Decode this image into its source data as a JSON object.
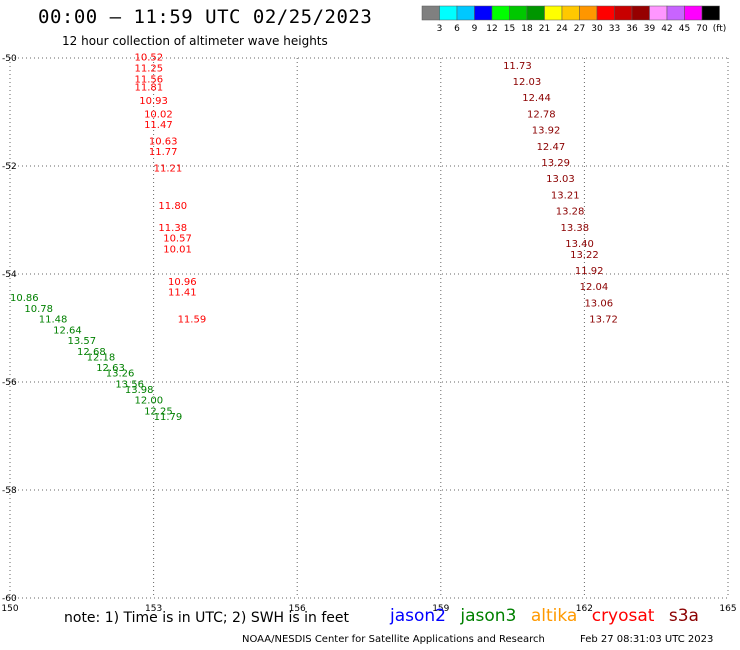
{
  "header": {
    "title": "00:00 — 11:59 UTC 02/25/2023",
    "subtitle": "12 hour collection of altimeter wave heights"
  },
  "colorbar": {
    "colors": [
      "#808080",
      "#00ffff",
      "#00c8ff",
      "#0000ff",
      "#00ff00",
      "#00c800",
      "#009600",
      "#ffff00",
      "#ffc800",
      "#ff9600",
      "#ff0000",
      "#c80000",
      "#960000",
      "#ff96ff",
      "#c864ff",
      "#ff00ff",
      "#000000"
    ],
    "labels": [
      "3",
      "6",
      "9",
      "12",
      "15",
      "18",
      "21",
      "24",
      "27",
      "30",
      "33",
      "36",
      "39",
      "42",
      "45",
      "70",
      "(ft)"
    ]
  },
  "footer": {
    "note": "note: 1) Time is in UTC; 2) SWH is in feet",
    "satellites": [
      {
        "name": "jason2",
        "color": "#0000ff"
      },
      {
        "name": "jason3",
        "color": "#008000"
      },
      {
        "name": "altika",
        "color": "#ff9900"
      },
      {
        "name": "cryosat",
        "color": "#ff0000"
      },
      {
        "name": "s3a",
        "color": "#8b0000"
      }
    ],
    "credit": "NOAA/NESDIS Center for Satellite Applications and Research",
    "date": "Feb 27 08:31:03 UTC 2023"
  },
  "chart_data": {
    "type": "scatter",
    "title": "12 hour collection of altimeter wave heights",
    "xlim": [
      150,
      165
    ],
    "ylim": [
      -60,
      -50
    ],
    "x_ticks": [
      "150",
      "153",
      "156",
      "159",
      "162",
      "165"
    ],
    "y_ticks": [
      "-50",
      "-52",
      "-54",
      "-56",
      "-58",
      "-60"
    ],
    "grid": true,
    "series": [
      {
        "name": "cryosat",
        "color": "#ff0000",
        "points": [
          {
            "x": 152.9,
            "y": -50.05,
            "v": "10.52"
          },
          {
            "x": 152.9,
            "y": -50.25,
            "v": "11.25"
          },
          {
            "x": 152.9,
            "y": -50.45,
            "v": "11.56"
          },
          {
            "x": 152.9,
            "y": -50.6,
            "v": "11.81"
          },
          {
            "x": 153.0,
            "y": -50.85,
            "v": "10.93"
          },
          {
            "x": 153.1,
            "y": -51.1,
            "v": "10.02"
          },
          {
            "x": 153.1,
            "y": -51.3,
            "v": "11.47"
          },
          {
            "x": 153.2,
            "y": -51.6,
            "v": "10.63"
          },
          {
            "x": 153.2,
            "y": -51.8,
            "v": "11.77"
          },
          {
            "x": 153.3,
            "y": -52.1,
            "v": "11.21"
          },
          {
            "x": 153.4,
            "y": -52.8,
            "v": "11.80"
          },
          {
            "x": 153.4,
            "y": -53.2,
            "v": "11.38"
          },
          {
            "x": 153.5,
            "y": -53.4,
            "v": "10.57"
          },
          {
            "x": 153.5,
            "y": -53.6,
            "v": "10.01"
          },
          {
            "x": 153.6,
            "y": -54.2,
            "v": "10.96"
          },
          {
            "x": 153.6,
            "y": -54.4,
            "v": "11.41"
          },
          {
            "x": 153.8,
            "y": -54.9,
            "v": "11.59"
          }
        ]
      },
      {
        "name": "jason3",
        "color": "#008000",
        "points": [
          {
            "x": 150.3,
            "y": -54.5,
            "v": "10.86"
          },
          {
            "x": 150.6,
            "y": -54.7,
            "v": "10.78"
          },
          {
            "x": 150.9,
            "y": -54.9,
            "v": "11.48"
          },
          {
            "x": 151.2,
            "y": -55.1,
            "v": "12.64"
          },
          {
            "x": 151.5,
            "y": -55.3,
            "v": "13.57"
          },
          {
            "x": 151.7,
            "y": -55.5,
            "v": "12.68"
          },
          {
            "x": 151.9,
            "y": -55.6,
            "v": "12.18"
          },
          {
            "x": 152.1,
            "y": -55.8,
            "v": "12.63"
          },
          {
            "x": 152.3,
            "y": -55.9,
            "v": "13.26"
          },
          {
            "x": 152.5,
            "y": -56.1,
            "v": "13.56"
          },
          {
            "x": 152.7,
            "y": -56.2,
            "v": "13.98"
          },
          {
            "x": 152.9,
            "y": -56.4,
            "v": "12.00"
          },
          {
            "x": 153.1,
            "y": -56.6,
            "v": "12.25"
          },
          {
            "x": 153.3,
            "y": -56.7,
            "v": "11.79"
          }
        ]
      },
      {
        "name": "s3a",
        "color": "#8b0000",
        "points": [
          {
            "x": 160.6,
            "y": -50.2,
            "v": "11.73"
          },
          {
            "x": 160.8,
            "y": -50.5,
            "v": "12.03"
          },
          {
            "x": 161.0,
            "y": -50.8,
            "v": "12.44"
          },
          {
            "x": 161.1,
            "y": -51.1,
            "v": "12.78"
          },
          {
            "x": 161.2,
            "y": -51.4,
            "v": "13.92"
          },
          {
            "x": 161.3,
            "y": -51.7,
            "v": "12.47"
          },
          {
            "x": 161.4,
            "y": -52.0,
            "v": "13.29"
          },
          {
            "x": 161.5,
            "y": -52.3,
            "v": "13.03"
          },
          {
            "x": 161.6,
            "y": -52.6,
            "v": "13.21"
          },
          {
            "x": 161.7,
            "y": -52.9,
            "v": "13.28"
          },
          {
            "x": 161.8,
            "y": -53.2,
            "v": "13.38"
          },
          {
            "x": 161.9,
            "y": -53.5,
            "v": "13.40"
          },
          {
            "x": 162.0,
            "y": -53.7,
            "v": "13.22"
          },
          {
            "x": 162.1,
            "y": -54.0,
            "v": "11.92"
          },
          {
            "x": 162.2,
            "y": -54.3,
            "v": "12.04"
          },
          {
            "x": 162.3,
            "y": -54.6,
            "v": "13.06"
          },
          {
            "x": 162.4,
            "y": -54.9,
            "v": "13.72"
          }
        ]
      }
    ]
  }
}
